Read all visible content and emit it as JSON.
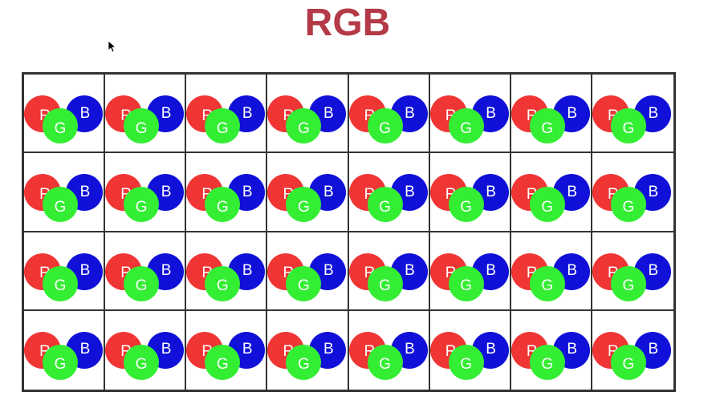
{
  "title": "RGB",
  "colors": {
    "title": "#b43a48",
    "red": "#f03535",
    "green": "#33ee33",
    "blue": "#1010d8",
    "border": "#333333"
  },
  "icons": {
    "cursor": "mouse-pointer-icon"
  },
  "grid": {
    "rows": 4,
    "cols": 8,
    "pixel_labels": {
      "red": "R",
      "green": "G",
      "blue": "B"
    }
  }
}
